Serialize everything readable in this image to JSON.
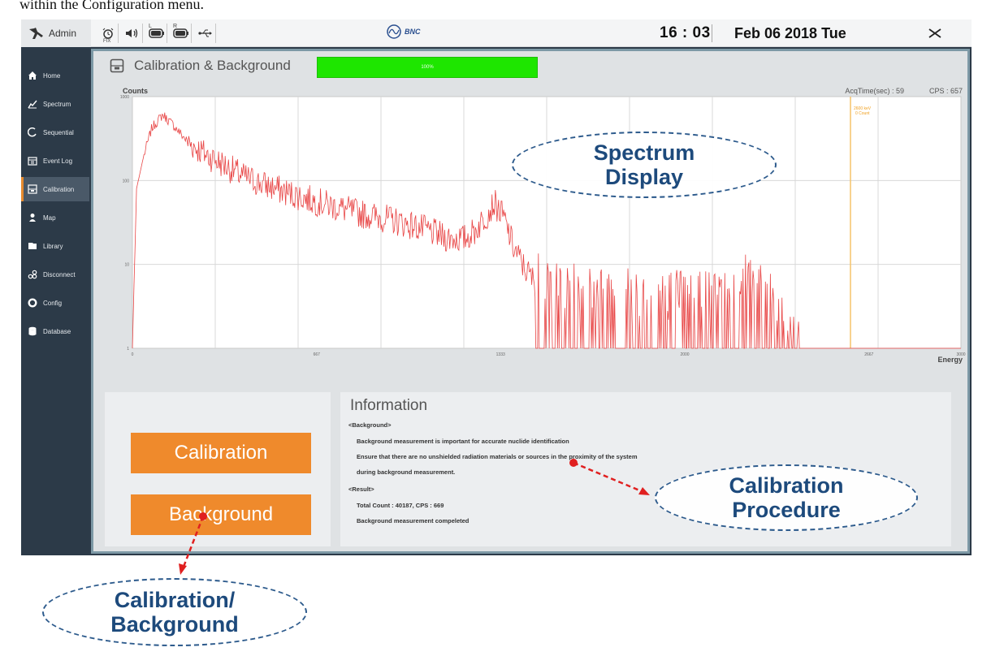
{
  "caption": "within the Configuration menu.",
  "topbar": {
    "user": "Admin",
    "status_icons": [
      {
        "icon": "alarm-clock-icon",
        "sub": "FIX",
        "sup": ""
      },
      {
        "icon": "speaker-icon",
        "sub": "",
        "sup": ""
      },
      {
        "icon": "battery-icon",
        "sub": "",
        "sup": "L"
      },
      {
        "icon": "battery-icon",
        "sub": "",
        "sup": "R"
      },
      {
        "icon": "usb-icon",
        "sub": "",
        "sup": ""
      }
    ],
    "logo_text": "BNC",
    "time": "16 : 03",
    "date": "Feb 06 2018 Tue"
  },
  "sidebar": {
    "items": [
      {
        "label": "Home",
        "icon": "home-icon"
      },
      {
        "label": "Spectrum",
        "icon": "spectrum-icon"
      },
      {
        "label": "Sequential",
        "icon": "sequential-icon"
      },
      {
        "label": "Event Log",
        "icon": "calendar-icon"
      },
      {
        "label": "Calibration",
        "icon": "calibration-icon",
        "active": true
      },
      {
        "label": "Map",
        "icon": "map-person-icon"
      },
      {
        "label": "Library",
        "icon": "library-icon"
      },
      {
        "label": "Disconnect",
        "icon": "disconnect-icon"
      },
      {
        "label": "Config",
        "icon": "gear-icon"
      },
      {
        "label": "Database",
        "icon": "database-icon"
      }
    ]
  },
  "panel": {
    "title": "Calibration & Background",
    "progress_label": "100%",
    "progress_value": 1.0
  },
  "chart_data": {
    "type": "line",
    "ylabel": "Counts",
    "xlabel": "Energy",
    "y_scale": "log",
    "ylim": [
      1,
      1000
    ],
    "xlim": [
      0,
      3000
    ],
    "x_ticks": [
      "0",
      "667",
      "1333",
      "2000",
      "2667",
      "3000"
    ],
    "acq_time_label": "AcqTime(sec) : 59",
    "cps_label": "CPS : 657",
    "marker": {
      "x": 2600,
      "label_line1": "2600 keV",
      "label_line2": "0 Count"
    },
    "grid": true,
    "series": [
      {
        "color": "#e84545",
        "x": [
          0,
          15,
          40,
          70,
          110,
          150,
          200,
          260,
          330,
          400,
          480,
          560,
          650,
          740,
          830,
          920,
          1000,
          1060,
          1130,
          1200,
          1240,
          1280,
          1310,
          1345,
          1380,
          1420,
          1460,
          1500,
          1560,
          1620,
          1700,
          1780,
          1850,
          1920,
          2000,
          2080,
          2160,
          2220,
          2300,
          2380,
          2460,
          2500,
          2540,
          2580,
          2640,
          2720,
          2800,
          2900,
          3000
        ],
        "y": [
          1,
          80,
          190,
          420,
          610,
          450,
          290,
          210,
          155,
          112,
          88,
          72,
          58,
          48,
          40,
          35,
          30,
          26,
          21,
          20,
          25,
          38,
          54,
          36,
          16,
          9,
          6,
          4,
          4.5,
          4,
          3.5,
          3.6,
          3.4,
          3,
          3.8,
          3.4,
          3.2,
          5.5,
          3.5,
          1,
          1,
          1,
          1,
          1,
          1,
          1,
          1,
          1,
          1
        ]
      }
    ]
  },
  "buttons": {
    "calibration": "Calibration",
    "background": "Background"
  },
  "info": {
    "title": "Information",
    "background_heading": "<Background>",
    "background_line1": "Background measurement is important for accurate nuclide identification",
    "background_line2": "Ensure that there are no unshielded radiation materials or sources in the proximity of the system",
    "background_line3": "during background measurement.",
    "result_heading": "<Result>",
    "result_line1": "Total Count : 40187, CPS : 669",
    "result_line2": "Background measurement compeleted"
  },
  "callouts": {
    "spectrum_line1": "Spectrum",
    "spectrum_line2": "Display",
    "procedure_line1": "Calibration",
    "procedure_line2": "Procedure",
    "calbg_line1": "Calibration/",
    "calbg_line2": "Background"
  },
  "colors": {
    "accent": "#ef8a2c",
    "progress": "#2eea00",
    "sidebar": "#2c3a48",
    "callout": "#1d4a7c",
    "trace": "#e84545",
    "marker": "#f5c36a"
  }
}
